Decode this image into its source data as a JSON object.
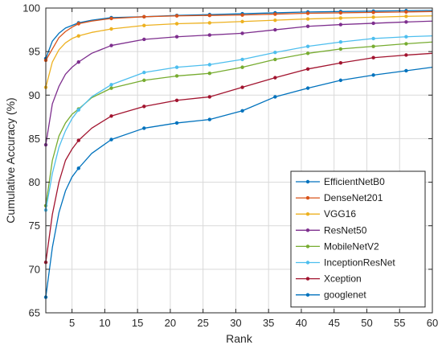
{
  "chart_data": {
    "type": "line",
    "xlabel": "Rank",
    "ylabel": "Cumulative Accuracy (%)",
    "xlim": [
      1,
      60
    ],
    "ylim": [
      65,
      100
    ],
    "xticks": [
      5,
      10,
      15,
      20,
      25,
      30,
      35,
      40,
      45,
      50,
      55,
      60
    ],
    "yticks": [
      65,
      70,
      75,
      80,
      85,
      90,
      95,
      100
    ],
    "grid": true,
    "legend_position": "lower-right",
    "marker_ranks": [
      1,
      6,
      11,
      16,
      21,
      26,
      31,
      36,
      41,
      46,
      51,
      56
    ],
    "series": [
      {
        "name": "EfficientNetB0",
        "color": "#0072BD",
        "x": [
          1,
          2,
          3,
          4,
          5,
          6,
          8,
          11,
          16,
          21,
          26,
          31,
          36,
          41,
          46,
          51,
          56,
          60
        ],
        "values": [
          94.2,
          96.2,
          97.1,
          97.7,
          98.0,
          98.3,
          98.6,
          98.9,
          99.0,
          99.15,
          99.25,
          99.35,
          99.45,
          99.55,
          99.6,
          99.65,
          99.7,
          99.72
        ]
      },
      {
        "name": "DenseNet201",
        "color": "#D95319",
        "x": [
          1,
          2,
          3,
          4,
          5,
          6,
          8,
          11,
          16,
          21,
          26,
          31,
          36,
          41,
          46,
          51,
          56,
          60
        ],
        "values": [
          94.0,
          95.3,
          96.6,
          97.3,
          97.8,
          98.2,
          98.5,
          98.8,
          99.0,
          99.1,
          99.15,
          99.2,
          99.3,
          99.4,
          99.45,
          99.5,
          99.55,
          99.6
        ]
      },
      {
        "name": "VGG16",
        "color": "#EDB120",
        "x": [
          1,
          2,
          3,
          4,
          5,
          6,
          8,
          11,
          16,
          21,
          26,
          31,
          36,
          41,
          46,
          51,
          56,
          60
        ],
        "values": [
          90.9,
          93.8,
          95.2,
          96.0,
          96.5,
          96.8,
          97.2,
          97.6,
          98.0,
          98.2,
          98.3,
          98.45,
          98.6,
          98.75,
          98.85,
          98.95,
          99.05,
          99.1
        ]
      },
      {
        "name": "ResNet50",
        "color": "#7E2F8E",
        "x": [
          1,
          2,
          3,
          4,
          5,
          6,
          8,
          11,
          16,
          21,
          26,
          31,
          36,
          41,
          46,
          51,
          56,
          60
        ],
        "values": [
          84.3,
          89.0,
          91.0,
          92.4,
          93.2,
          93.8,
          94.8,
          95.7,
          96.4,
          96.7,
          96.9,
          97.1,
          97.5,
          97.9,
          98.1,
          98.25,
          98.4,
          98.5
        ]
      },
      {
        "name": "MobileNetV2",
        "color": "#77AC30",
        "x": [
          1,
          2,
          3,
          4,
          5,
          6,
          8,
          11,
          16,
          21,
          26,
          31,
          36,
          41,
          46,
          51,
          56,
          60
        ],
        "values": [
          77.3,
          82.5,
          85.3,
          86.8,
          87.8,
          88.4,
          89.7,
          90.8,
          91.7,
          92.2,
          92.5,
          93.2,
          94.1,
          94.8,
          95.3,
          95.6,
          95.9,
          96.1
        ]
      },
      {
        "name": "InceptionResNet",
        "color": "#4DBEEE",
        "x": [
          1,
          2,
          3,
          4,
          5,
          6,
          8,
          11,
          16,
          21,
          26,
          31,
          36,
          41,
          46,
          51,
          56,
          60
        ],
        "values": [
          76.8,
          81.0,
          84.0,
          85.9,
          87.3,
          88.3,
          89.8,
          91.2,
          92.6,
          93.2,
          93.5,
          94.1,
          94.9,
          95.6,
          96.1,
          96.5,
          96.7,
          96.8
        ]
      },
      {
        "name": "Xception",
        "color": "#A2142F",
        "x": [
          1,
          2,
          3,
          4,
          5,
          6,
          8,
          11,
          16,
          21,
          26,
          31,
          36,
          41,
          46,
          51,
          56,
          60
        ],
        "values": [
          70.8,
          76.3,
          80.0,
          82.5,
          83.8,
          84.8,
          86.2,
          87.6,
          88.7,
          89.4,
          89.8,
          90.9,
          92.0,
          93.0,
          93.7,
          94.3,
          94.6,
          94.8
        ]
      },
      {
        "name": "googlenet",
        "color": "#0072BD",
        "x": [
          1,
          2,
          3,
          4,
          5,
          6,
          8,
          11,
          16,
          21,
          26,
          31,
          36,
          41,
          46,
          51,
          56,
          60
        ],
        "values": [
          66.8,
          72.5,
          76.5,
          79.0,
          80.6,
          81.6,
          83.3,
          84.9,
          86.2,
          86.8,
          87.2,
          88.2,
          89.8,
          90.8,
          91.7,
          92.3,
          92.8,
          93.2
        ]
      }
    ]
  }
}
